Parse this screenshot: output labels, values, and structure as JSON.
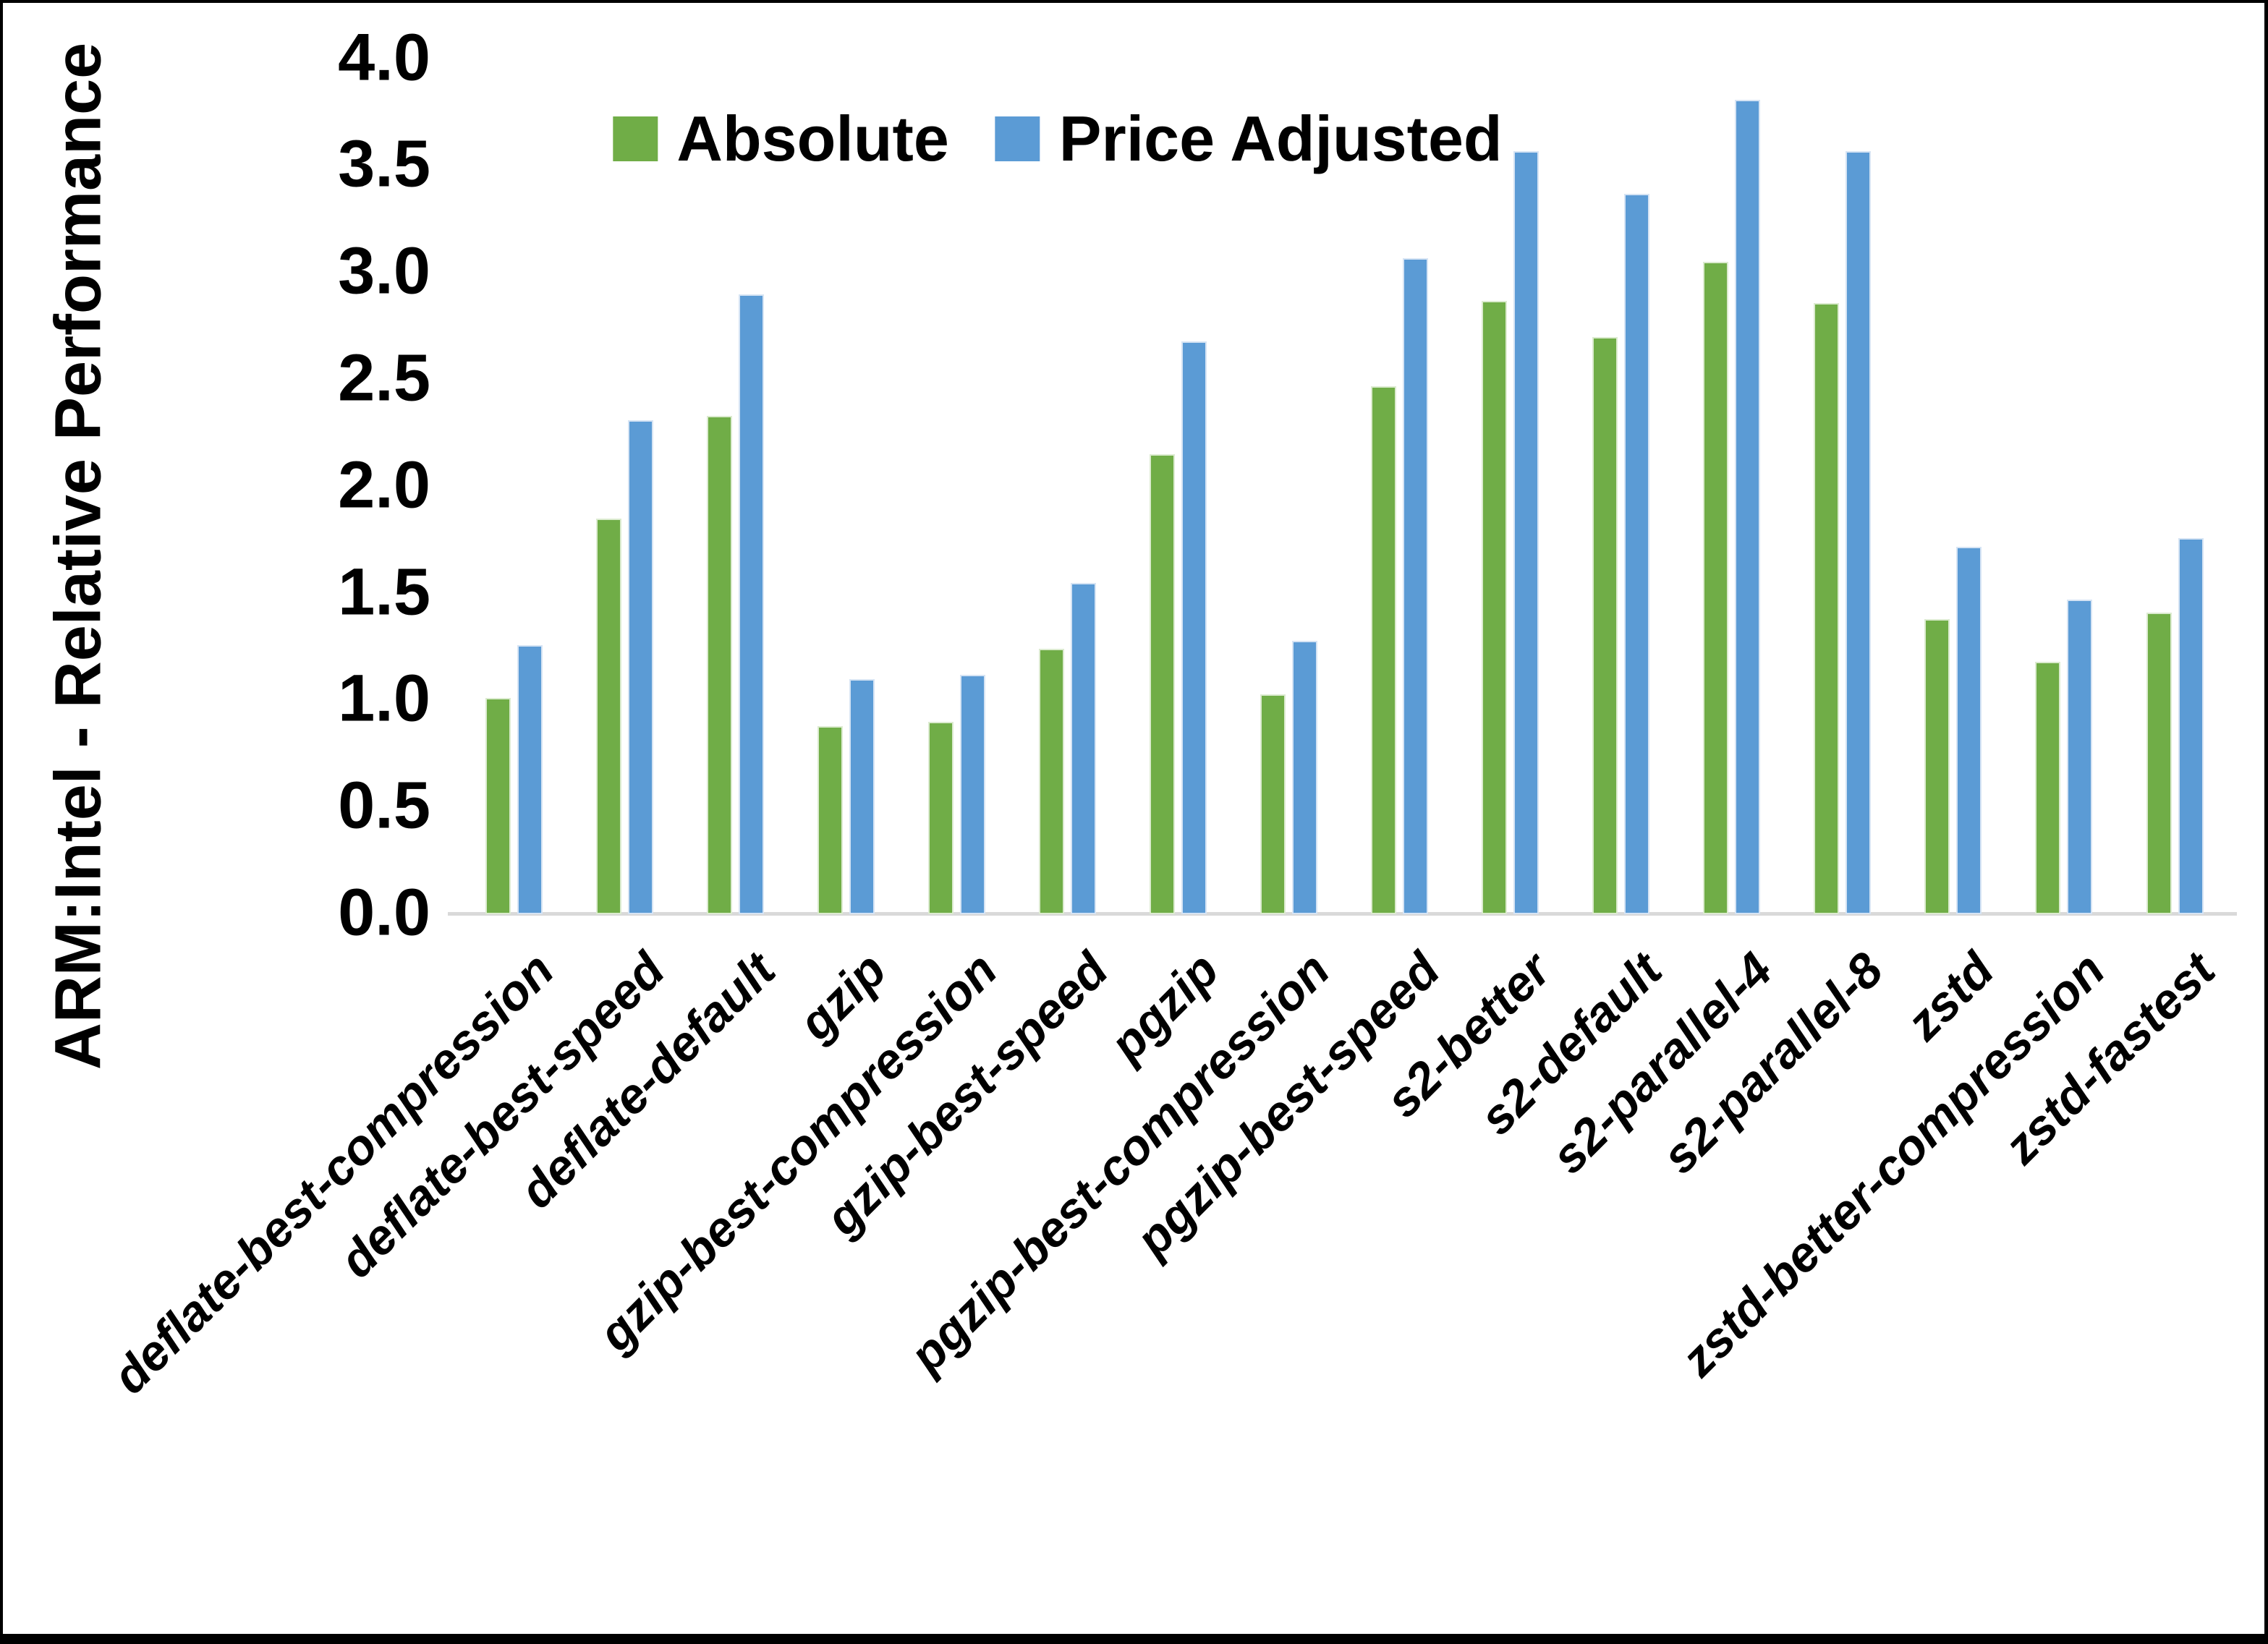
{
  "figure": {
    "background": "#FFFFFF",
    "border_color": "#000000"
  },
  "chart_data": {
    "type": "bar",
    "title": "",
    "xlabel": "",
    "ylabel": "ARM:Intel - Relative Performance",
    "ylim": [
      0.0,
      4.0
    ],
    "ytick_labels": [
      "4.0",
      "3.5",
      "3.0",
      "2.5",
      "2.0",
      "1.5",
      "1.0",
      "0.5",
      "0.0"
    ],
    "grid": false,
    "legend_position": "top-center",
    "axis_line_color": "#D9D9D9",
    "categories": [
      "deflate-best-compression",
      "deflate-best-speed",
      "deflate-default",
      "gzip",
      "gzip-best-compression",
      "gzip-best-speed",
      "pgzip",
      "pgzip-best-compression",
      "pgzip-best-speed",
      "s2-better",
      "s2-default",
      "s2-parallel-4",
      "s2-parallel-8",
      "zstd",
      "zstd-better-compression",
      "zstd-fastest"
    ],
    "series": [
      {
        "name": "Absolute",
        "color": "#70AD47",
        "edge_color": "#DCEBD0",
        "values": [
          1.01,
          1.85,
          2.33,
          0.88,
          0.9,
          1.24,
          2.15,
          1.03,
          2.47,
          2.87,
          2.7,
          3.05,
          2.86,
          1.38,
          1.18,
          1.41
        ]
      },
      {
        "name": "Price Adjusted",
        "color": "#5B9BD5",
        "edge_color": "#D6E4F4",
        "values": [
          1.26,
          2.31,
          2.9,
          1.1,
          1.12,
          1.55,
          2.68,
          1.28,
          3.07,
          3.57,
          3.37,
          3.81,
          3.57,
          1.72,
          1.47,
          1.76
        ]
      }
    ]
  }
}
